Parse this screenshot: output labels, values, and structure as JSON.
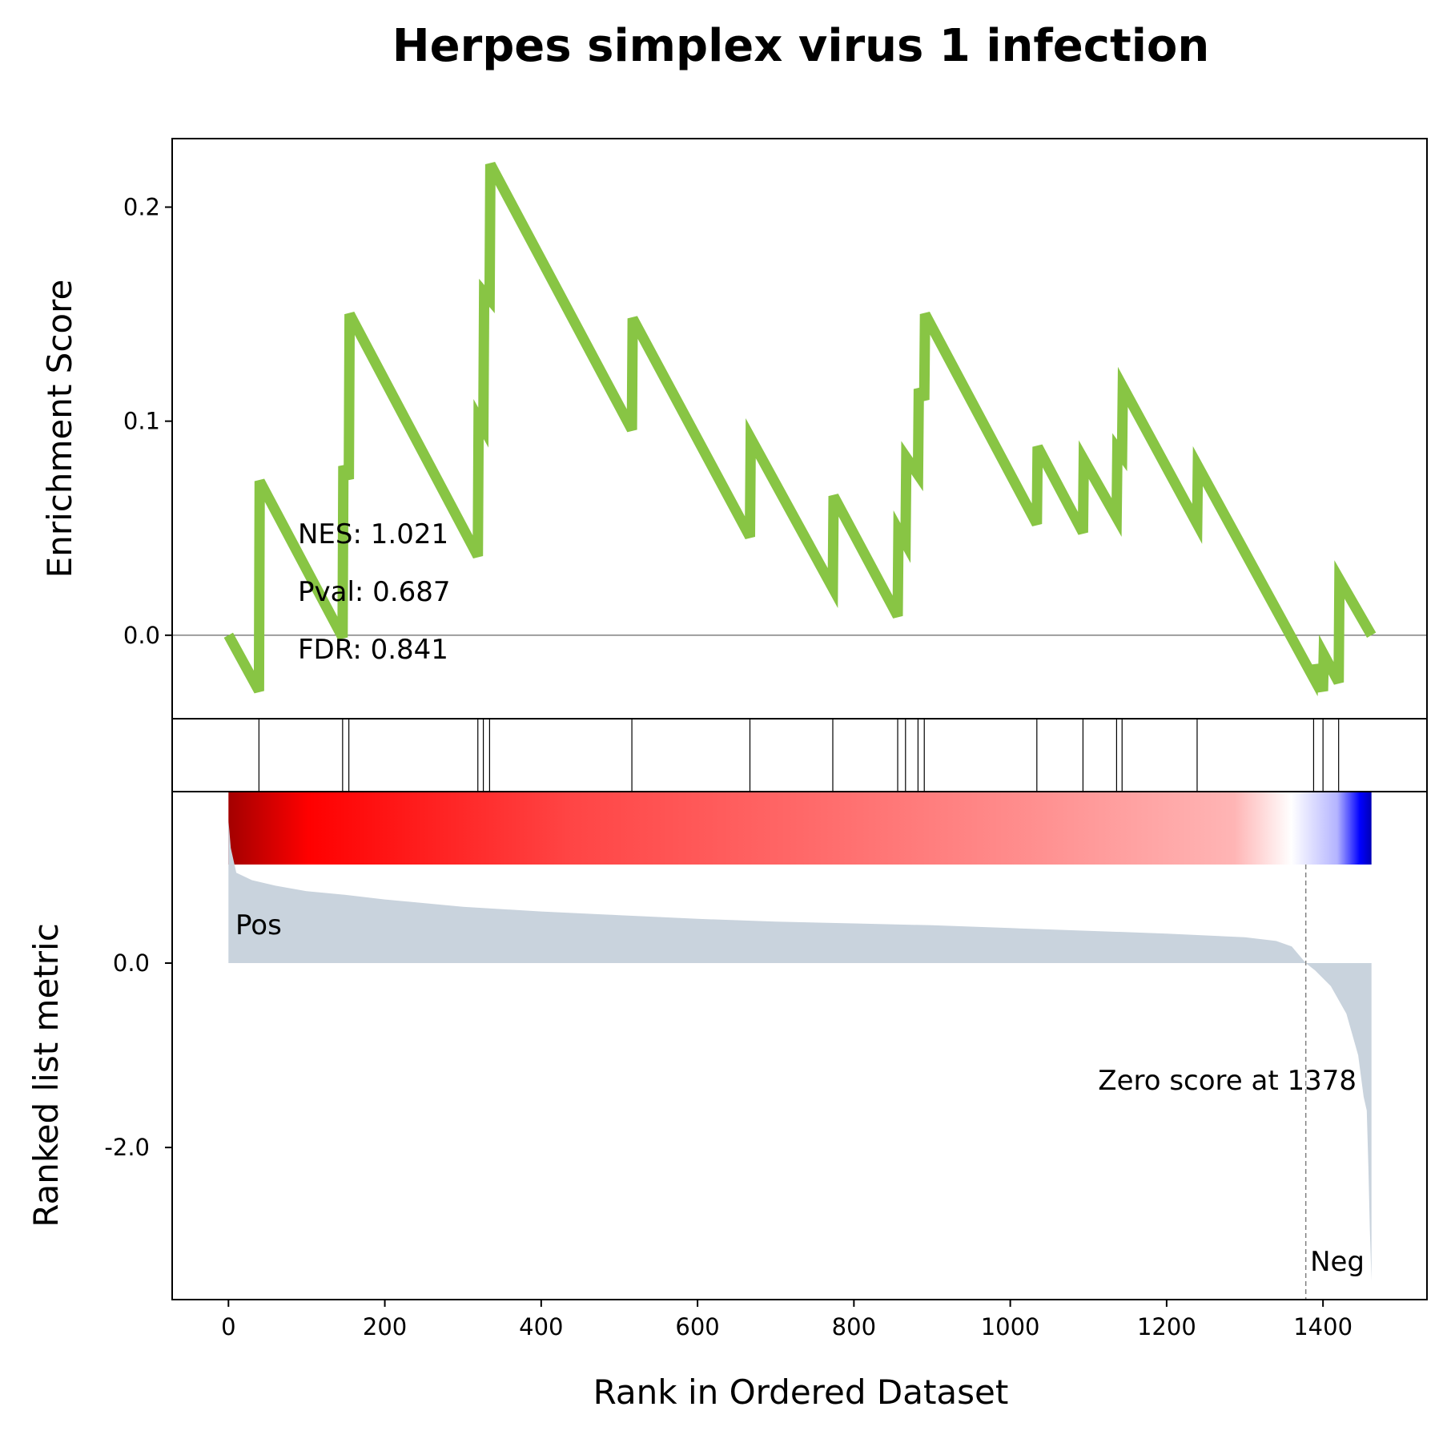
{
  "chart_data": {
    "type": "line",
    "title": "Herpes simplex virus 1 infection",
    "xlabel": "Rank in Ordered Dataset",
    "xlim": [
      -72,
      1533
    ],
    "x_ticks": [
      0,
      200,
      400,
      600,
      800,
      1000,
      1200,
      1400
    ],
    "n_genes": 1462,
    "enrichment": {
      "ylabel": "Enrichment Score",
      "ylim": [
        -0.039,
        0.232
      ],
      "y_ticks": [
        0.0,
        0.1,
        0.2
      ],
      "y_tick_labels": [
        "0.0",
        "0.1",
        "0.2"
      ],
      "line_color": "#88c544",
      "stats": {
        "nes": "NES: 1.021",
        "pval": "Pval: 0.687",
        "fdr": "FDR: 0.841"
      },
      "points": [
        [
          0,
          0.0
        ],
        [
          39,
          -0.026
        ],
        [
          40,
          0.072
        ],
        [
          146,
          -0.001
        ],
        [
          147,
          0.079
        ],
        [
          154,
          0.073
        ],
        [
          155,
          0.15
        ],
        [
          319,
          0.037
        ],
        [
          320,
          0.101
        ],
        [
          326,
          0.097
        ],
        [
          327,
          0.16
        ],
        [
          334,
          0.157
        ],
        [
          335,
          0.22
        ],
        [
          516,
          0.096
        ],
        [
          517,
          0.148
        ],
        [
          667,
          0.046
        ],
        [
          668,
          0.092
        ],
        [
          773,
          0.022
        ],
        [
          774,
          0.065
        ],
        [
          856,
          0.009
        ],
        [
          857,
          0.049
        ],
        [
          866,
          0.043
        ],
        [
          867,
          0.083
        ],
        [
          882,
          0.075
        ],
        [
          883,
          0.115
        ],
        [
          890,
          0.11
        ],
        [
          891,
          0.15
        ],
        [
          1034,
          0.052
        ],
        [
          1035,
          0.088
        ],
        [
          1093,
          0.048
        ],
        [
          1094,
          0.082
        ],
        [
          1136,
          0.055
        ],
        [
          1137,
          0.087
        ],
        [
          1143,
          0.084
        ],
        [
          1144,
          0.116
        ],
        [
          1239,
          0.052
        ],
        [
          1240,
          0.079
        ],
        [
          1388,
          -0.02
        ],
        [
          1389,
          -0.014
        ],
        [
          1400,
          -0.026
        ],
        [
          1401,
          -0.009
        ],
        [
          1420,
          -0.022
        ],
        [
          1421,
          0.026
        ],
        [
          1462,
          0.0
        ]
      ]
    },
    "hits": [
      39,
      146,
      154,
      319,
      326,
      334,
      516,
      667,
      773,
      856,
      866,
      882,
      890,
      1034,
      1093,
      1136,
      1143,
      1239,
      1388,
      1400,
      1420
    ],
    "ranked_metric": {
      "ylabel": "Ranked list metric",
      "ylim": [
        -3.65,
        1.86
      ],
      "y_ticks": [
        0.0,
        -2.0
      ],
      "y_tick_labels": [
        "0.0",
        "-2.0"
      ],
      "fill_color": "#c9d3dd",
      "zero_rank": 1378,
      "zero_label": "Zero score at 1378",
      "pos_label": "Pos",
      "neg_label": "Neg",
      "curve": [
        [
          0,
          1.55
        ],
        [
          3,
          1.25
        ],
        [
          10,
          0.98
        ],
        [
          30,
          0.9
        ],
        [
          60,
          0.84
        ],
        [
          100,
          0.78
        ],
        [
          150,
          0.74
        ],
        [
          200,
          0.69
        ],
        [
          300,
          0.61
        ],
        [
          400,
          0.56
        ],
        [
          500,
          0.52
        ],
        [
          600,
          0.48
        ],
        [
          700,
          0.45
        ],
        [
          800,
          0.43
        ],
        [
          900,
          0.41
        ],
        [
          1000,
          0.38
        ],
        [
          1100,
          0.35
        ],
        [
          1200,
          0.32
        ],
        [
          1300,
          0.28
        ],
        [
          1340,
          0.24
        ],
        [
          1360,
          0.18
        ],
        [
          1378,
          0.0
        ],
        [
          1390,
          -0.08
        ],
        [
          1410,
          -0.25
        ],
        [
          1430,
          -0.55
        ],
        [
          1445,
          -1.0
        ],
        [
          1452,
          -1.45
        ],
        [
          1456,
          -1.6
        ],
        [
          1458,
          -2.2
        ],
        [
          1460,
          -2.9
        ],
        [
          1462,
          -3.45
        ]
      ]
    },
    "heatmap_colors": {
      "stops": [
        [
          0.0,
          "#a30000"
        ],
        [
          0.07,
          "#ff0000"
        ],
        [
          0.15,
          "#ff1818"
        ],
        [
          0.3,
          "#ff4545"
        ],
        [
          0.5,
          "#ff6868"
        ],
        [
          0.7,
          "#ff8e8e"
        ],
        [
          0.88,
          "#ffb5b5"
        ],
        [
          0.93,
          "#ffffff"
        ],
        [
          0.97,
          "#b4b4ff"
        ],
        [
          0.99,
          "#0000ff"
        ],
        [
          1.0,
          "#0000b4"
        ]
      ]
    },
    "label_colors": {
      "pos": "#ff0000",
      "neg": "#0000ff"
    }
  }
}
